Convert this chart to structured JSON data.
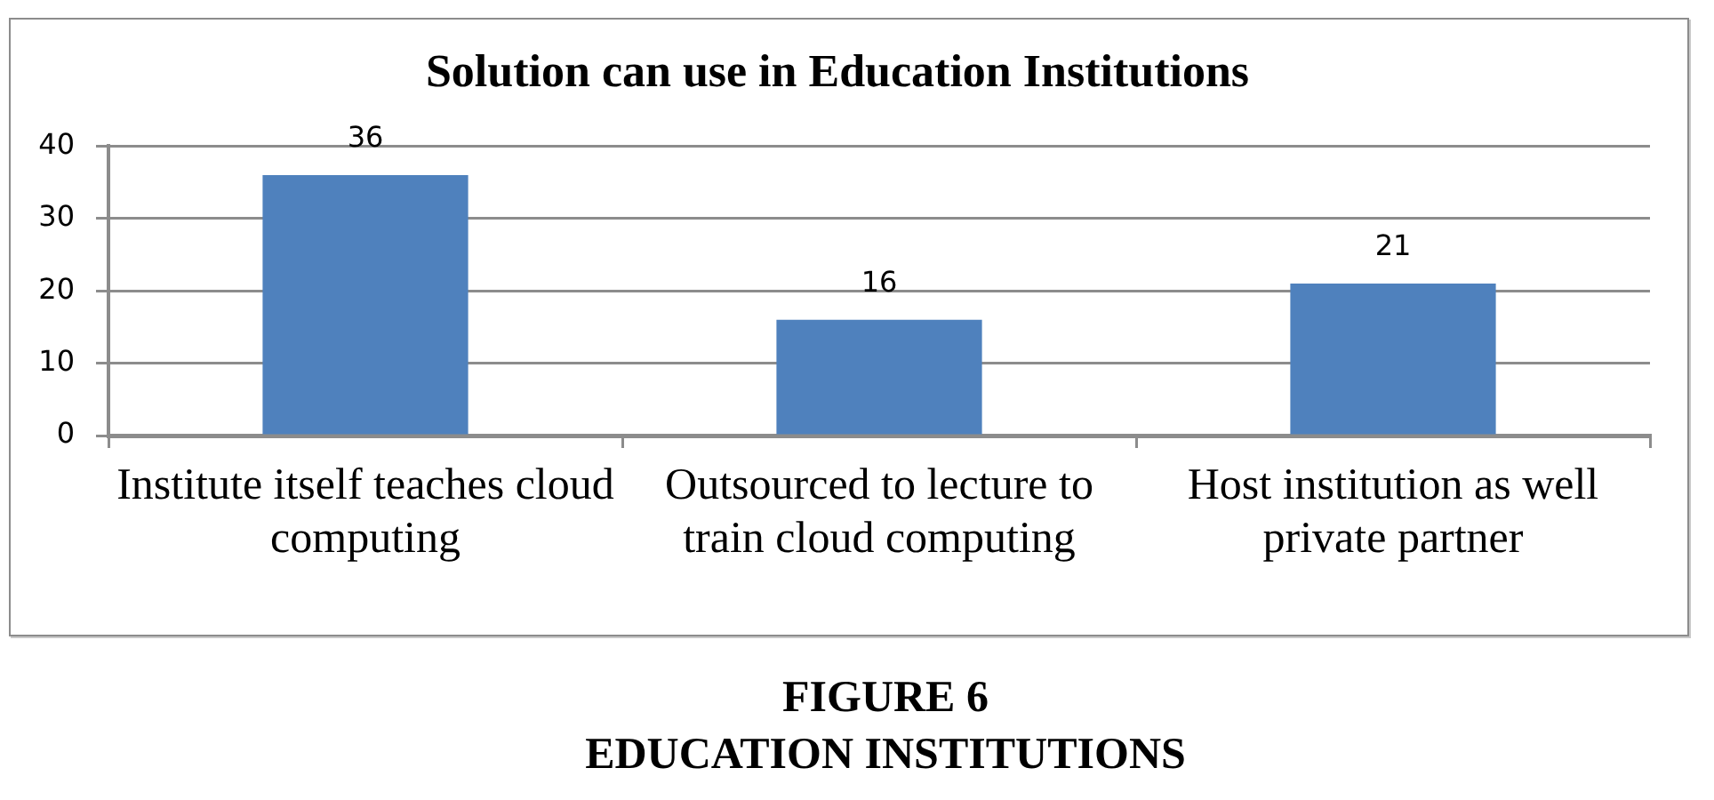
{
  "chart_data": {
    "type": "bar",
    "title": "Solution can use in Education Institutions",
    "categories": [
      "Institute itself teaches cloud computing",
      "Outsourced to lecture to train cloud computing",
      "Host institution as well private partner"
    ],
    "values": [
      36,
      16,
      21
    ],
    "color": "#4f81bd",
    "ylim": [
      0,
      40
    ],
    "yticks": [
      0,
      10,
      20,
      30,
      40
    ],
    "grid": "y",
    "data_labels": true,
    "annotations": [
      "FIGURE 6",
      "EDUCATION INSTITUTIONS"
    ]
  }
}
